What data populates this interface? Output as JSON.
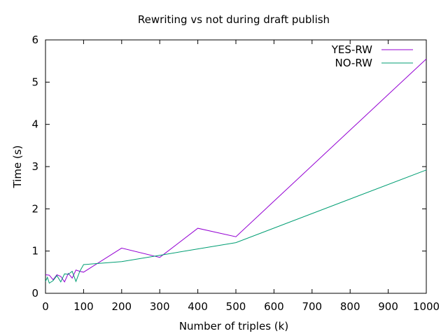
{
  "chart_data": {
    "type": "line",
    "title": "Rewriting vs not during draft publish",
    "xlabel": "Number of triples (k)",
    "ylabel": "Time (s)",
    "xlim": [
      0,
      1000
    ],
    "ylim": [
      0,
      6
    ],
    "x_ticks": [
      "0",
      "100",
      "200",
      "300",
      "400",
      "500",
      "600",
      "700",
      "800",
      "900",
      "1000"
    ],
    "y_ticks": [
      "0",
      "1",
      "2",
      "3",
      "4",
      "5",
      "6"
    ],
    "grid": false,
    "legend_position": "top-right",
    "series": [
      {
        "name": "YES-RW",
        "color": "#9400d3",
        "x": [
          0,
          10,
          20,
          30,
          40,
          50,
          60,
          70,
          80,
          90,
          100,
          200,
          300,
          400,
          500,
          1000
        ],
        "y": [
          0.44,
          0.43,
          0.32,
          0.44,
          0.4,
          0.27,
          0.47,
          0.36,
          0.55,
          0.52,
          0.5,
          1.07,
          0.85,
          1.54,
          1.34,
          5.55
        ]
      },
      {
        "name": "NO-RW",
        "color": "#009e73",
        "x": [
          0,
          5,
          10,
          20,
          30,
          40,
          50,
          60,
          70,
          80,
          90,
          100,
          200,
          300,
          400,
          500,
          1000
        ],
        "y": [
          0.28,
          0.38,
          0.24,
          0.3,
          0.42,
          0.27,
          0.46,
          0.45,
          0.52,
          0.28,
          0.52,
          0.68,
          0.75,
          0.9,
          1.05,
          1.2,
          2.92
        ]
      }
    ]
  }
}
